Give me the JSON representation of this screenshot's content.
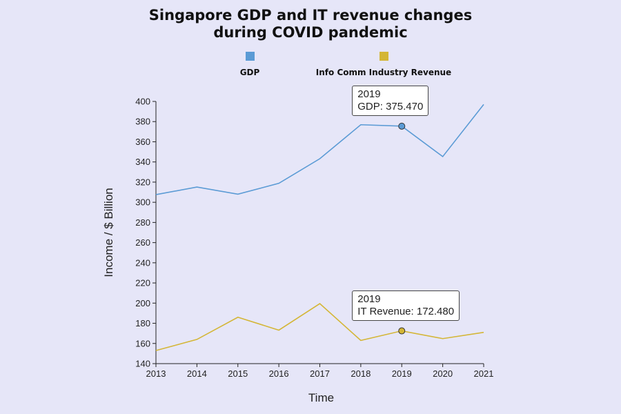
{
  "chart_data": {
    "type": "line",
    "title_lines": [
      "Singapore GDP and IT revenue changes",
      "during COVID pandemic"
    ],
    "xlabel": "Time",
    "ylabel": "Income / $ Billion",
    "x": [
      2013,
      2014,
      2015,
      2016,
      2017,
      2018,
      2019,
      2020,
      2021
    ],
    "ylim": [
      140,
      400
    ],
    "yticks": [
      140,
      160,
      180,
      200,
      220,
      240,
      260,
      280,
      300,
      320,
      340,
      360,
      380,
      400
    ],
    "grid": false,
    "legend_position": "top",
    "series": [
      {
        "name": "GDP",
        "color": "#5b9bd5",
        "values": [
          307.6,
          315.1,
          308.0,
          318.8,
          343.2,
          376.9,
          375.47,
          345.3,
          397.0
        ]
      },
      {
        "name": "Info Comm Industry Revenue",
        "color": "#d4b636",
        "values": [
          153.0,
          164.0,
          186.0,
          173.2,
          199.5,
          163.0,
          172.48,
          164.8,
          171.0
        ]
      }
    ],
    "tooltips": [
      {
        "series": 0,
        "x": 2019,
        "line1": "2019",
        "line2": "GDP: 375.470"
      },
      {
        "series": 1,
        "x": 2019,
        "line1": "2019",
        "line2": "IT Revenue: 172.480"
      }
    ]
  }
}
